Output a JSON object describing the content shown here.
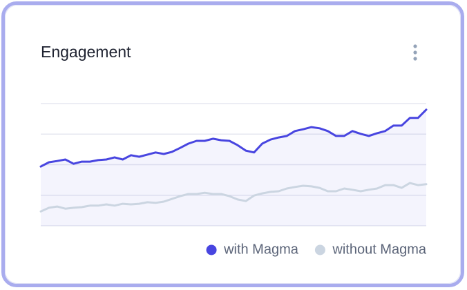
{
  "chart_data": {
    "type": "line",
    "title": "Engagement",
    "ylim": [
      0,
      4
    ],
    "yticks": [
      0,
      1,
      2,
      3,
      4
    ],
    "grid": true,
    "series": [
      {
        "name": "with Magma",
        "color": "#4845e0",
        "values": [
          1.94,
          2.08,
          2.12,
          2.17,
          2.03,
          2.1,
          2.1,
          2.15,
          2.17,
          2.24,
          2.17,
          2.31,
          2.26,
          2.33,
          2.4,
          2.35,
          2.42,
          2.55,
          2.69,
          2.78,
          2.78,
          2.85,
          2.8,
          2.78,
          2.64,
          2.46,
          2.4,
          2.69,
          2.82,
          2.89,
          2.94,
          3.1,
          3.16,
          3.23,
          3.19,
          3.1,
          2.94,
          2.94,
          3.1,
          3.01,
          2.94,
          3.03,
          3.1,
          3.28,
          3.28,
          3.53,
          3.53,
          3.8
        ]
      },
      {
        "name": "without Magma",
        "color": "#cbd5e1",
        "values": [
          0.47,
          0.59,
          0.63,
          0.56,
          0.59,
          0.61,
          0.66,
          0.66,
          0.7,
          0.66,
          0.72,
          0.7,
          0.72,
          0.77,
          0.75,
          0.79,
          0.88,
          0.97,
          1.04,
          1.04,
          1.08,
          1.04,
          1.04,
          0.97,
          0.86,
          0.81,
          0.99,
          1.06,
          1.11,
          1.13,
          1.22,
          1.27,
          1.31,
          1.29,
          1.24,
          1.13,
          1.13,
          1.22,
          1.18,
          1.13,
          1.18,
          1.22,
          1.33,
          1.33,
          1.24,
          1.4,
          1.33,
          1.36
        ]
      }
    ]
  }
}
